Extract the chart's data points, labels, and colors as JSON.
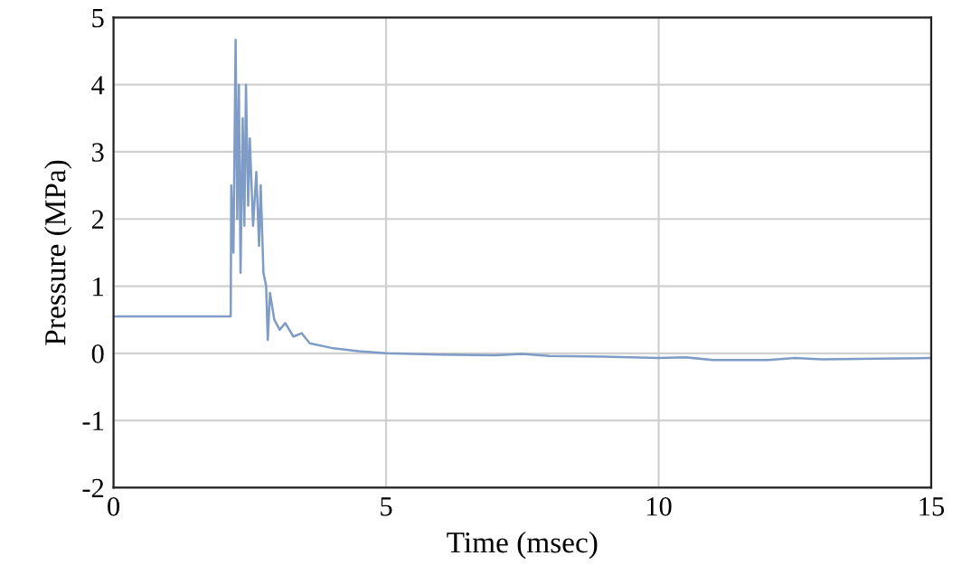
{
  "chart_data": {
    "type": "line",
    "xlabel": "Time (msec)",
    "ylabel": "Pressure (MPa)",
    "xlim": [
      0,
      15
    ],
    "xticks": [
      0,
      5,
      10,
      15
    ],
    "ylim": [
      -2,
      5
    ],
    "yticks": [
      -2,
      -1,
      0,
      1,
      2,
      3,
      4,
      5
    ],
    "grid": true,
    "marker": "none",
    "line_style": "solid",
    "series": [
      {
        "color": "#7f9cc6",
        "x": [
          0,
          2.15,
          2.16,
          2.2,
          2.24,
          2.27,
          2.3,
          2.33,
          2.37,
          2.4,
          2.43,
          2.47,
          2.5,
          2.56,
          2.62,
          2.67,
          2.7,
          2.75,
          2.8,
          2.83,
          2.87,
          2.95,
          3.05,
          3.15,
          3.3,
          3.45,
          3.6,
          4.0,
          4.5,
          5,
          6,
          7,
          7.5,
          8,
          9,
          10,
          10.5,
          11,
          12,
          12.5,
          13,
          14,
          15
        ],
        "values": [
          0.55,
          0.55,
          2.5,
          1.5,
          4.67,
          2.0,
          4.0,
          1.2,
          3.5,
          1.9,
          4.0,
          2.2,
          3.2,
          1.9,
          2.7,
          1.6,
          2.5,
          1.2,
          1.0,
          0.2,
          0.9,
          0.5,
          0.35,
          0.45,
          0.25,
          0.3,
          0.15,
          0.08,
          0.03,
          0,
          -0.02,
          -0.03,
          -0.01,
          -0.04,
          -0.05,
          -0.07,
          -0.06,
          -0.1,
          -0.1,
          -0.07,
          -0.09,
          -0.08,
          -0.07
        ]
      }
    ]
  }
}
